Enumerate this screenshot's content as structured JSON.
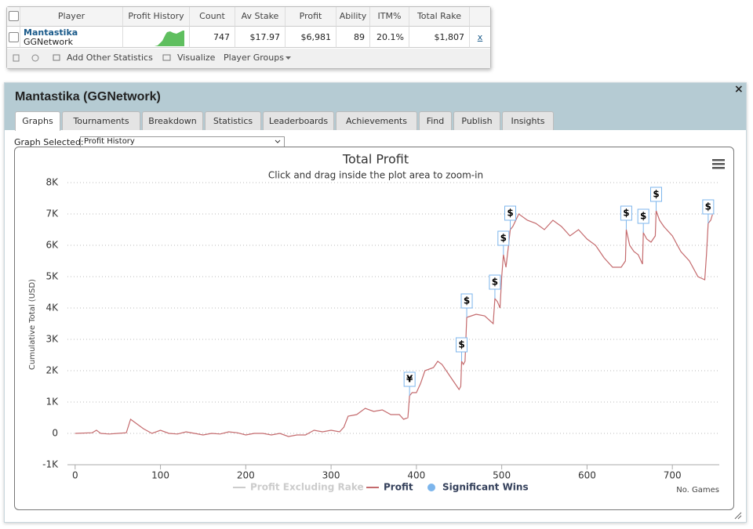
{
  "table": {
    "headers": [
      "Player",
      "Profit History",
      "Count",
      "Av Stake",
      "Profit",
      "Ability",
      "ITM%",
      "Total Rake"
    ],
    "row": {
      "player": "Mantastika",
      "network": "GGNetwork",
      "count": "747",
      "av_stake": "$17.97",
      "profit": "$6,981",
      "ability": "89",
      "itm": "20.1%",
      "total_rake": "$1,807",
      "remove": "x"
    }
  },
  "toolbar": {
    "add": "Add Other Statistics",
    "visualize": "Visualize",
    "groups": "Player Groups"
  },
  "panel": {
    "title": "Mantastika (GGNetwork)",
    "close": "×",
    "tabs": [
      "Graphs",
      "Tournaments",
      "Breakdown",
      "Statistics",
      "Leaderboards",
      "Achievements",
      "Find",
      "Publish",
      "Insights"
    ],
    "graph_selected_label": "Graph Selected:",
    "graph_selected_value": "Profit History"
  },
  "chart_data": {
    "type": "line",
    "title": "Total Profit",
    "subtitle": "Click and drag inside the plot area to zoom-in",
    "y_label": "Cumulative Total (USD)",
    "x_label": "No. Games",
    "xlim": [
      -9,
      755
    ],
    "ylim": [
      -1000,
      8000
    ],
    "xticks": [
      0,
      100,
      200,
      300,
      400,
      500,
      600,
      700
    ],
    "yticks": [
      {
        "value": -1000,
        "label": "-1K"
      },
      0,
      {
        "value": 1000,
        "label": "1K"
      },
      {
        "value": 2000,
        "label": "2K"
      },
      {
        "value": 3000,
        "label": "3K"
      },
      {
        "value": 4000,
        "label": "4K"
      },
      {
        "value": 5000,
        "label": "5K"
      },
      {
        "value": 6000,
        "label": "6K"
      },
      {
        "value": 7000,
        "label": "7K"
      },
      {
        "value": 8000,
        "label": "8K"
      }
    ],
    "grid": true,
    "x": [
      0,
      20,
      25,
      30,
      40,
      50,
      60,
      65,
      70,
      80,
      90,
      100,
      110,
      120,
      130,
      140,
      150,
      160,
      170,
      180,
      190,
      200,
      210,
      220,
      230,
      240,
      250,
      260,
      270,
      280,
      290,
      300,
      310,
      315,
      320,
      330,
      340,
      350,
      360,
      370,
      380,
      385,
      390,
      392,
      395,
      400,
      405,
      410,
      420,
      425,
      430,
      440,
      450,
      452,
      453,
      455,
      457,
      459,
      470,
      480,
      490,
      492,
      495,
      498,
      500,
      502,
      505,
      508,
      510,
      513,
      520,
      530,
      540,
      550,
      560,
      570,
      580,
      590,
      600,
      610,
      620,
      630,
      640,
      645,
      646,
      650,
      655,
      660,
      665,
      666,
      670,
      675,
      680,
      681,
      685,
      690,
      700,
      710,
      720,
      730,
      738,
      740,
      742,
      745,
      747
    ],
    "series": [
      {
        "name": "Profit Excluding Rake",
        "color": "#cccccc",
        "visible": false
      },
      {
        "name": "Profit",
        "color": "#c46a6d",
        "visible": true,
        "values": [
          0,
          20,
          100,
          0,
          -20,
          0,
          20,
          450,
          350,
          150,
          0,
          100,
          0,
          -20,
          50,
          0,
          -50,
          0,
          -20,
          50,
          20,
          -50,
          0,
          0,
          -50,
          0,
          -100,
          -50,
          -50,
          100,
          50,
          100,
          50,
          200,
          550,
          600,
          800,
          700,
          750,
          600,
          600,
          450,
          500,
          1200,
          1300,
          1300,
          1600,
          2000,
          2100,
          2300,
          2200,
          1800,
          1400,
          1500,
          2300,
          2200,
          2300,
          3700,
          3800,
          3750,
          3500,
          4300,
          4200,
          4000,
          5000,
          5700,
          5300,
          6000,
          6500,
          6600,
          7000,
          6800,
          6700,
          6500,
          6800,
          6600,
          6300,
          6500,
          6200,
          6000,
          5600,
          5300,
          5300,
          5500,
          6500,
          6000,
          5800,
          5700,
          5400,
          6400,
          6200,
          6100,
          6300,
          7100,
          6800,
          6600,
          6300,
          5800,
          5500,
          5000,
          4900,
          5700,
          6700,
          6800,
          6981
        ]
      },
      {
        "name": "Significant Wins",
        "color": "#7cb5ec",
        "visible": true,
        "x": [
          392,
          453,
          459,
          492,
          502,
          510,
          646,
          666,
          681,
          742
        ],
        "values": [
          1200,
          2300,
          3700,
          4300,
          5700,
          6500,
          6500,
          6400,
          7100,
          6700
        ],
        "labels": [
          "¥",
          "$",
          "$",
          "$",
          "$",
          "$",
          "$",
          "$",
          "$",
          "$"
        ]
      }
    ]
  }
}
